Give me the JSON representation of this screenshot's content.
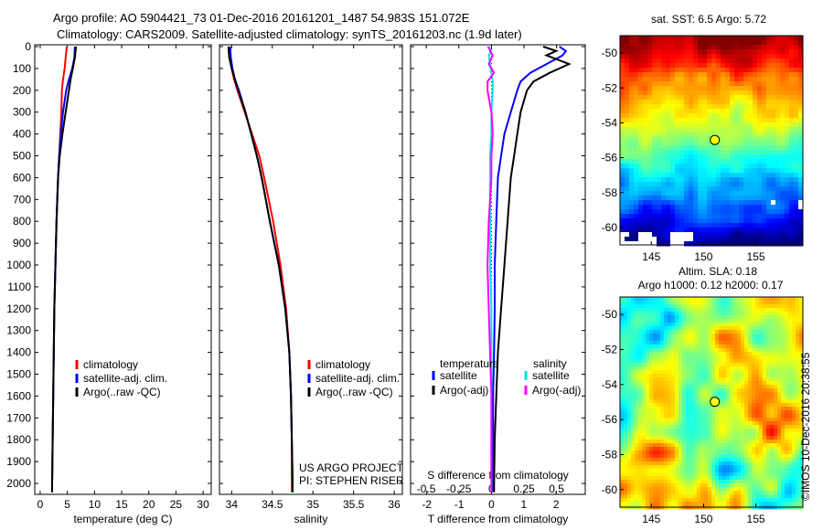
{
  "header": {
    "line1": "Argo profile: AO 5904421_73 01-Dec-2016 20161201_1487 54.983S 151.072E",
    "line2": "Climatology: CARS2009. Satellite-adjusted climatology: synTS_20161203.nc (1.9d later)"
  },
  "stamp": "©IMOS 10-Dec-2016 20:38:55",
  "colors": {
    "climatology": "#ff0000",
    "satellite": "#0000ff",
    "argo": "#000000",
    "salinity_satellite": "#00e5e5",
    "salinity_argo": "#ff00ff"
  },
  "chart_data": [
    {
      "type": "line",
      "panel": "temperature",
      "xlabel": "temperature (deg C)",
      "ylabel": "",
      "xlim": [
        -1,
        31.5
      ],
      "ylim": [
        2050,
        0
      ],
      "xticks": [
        "0",
        "5",
        "10",
        "15",
        "20",
        "25",
        "30"
      ],
      "yticks": [
        "0",
        "100",
        "200",
        "300",
        "400",
        "500",
        "600",
        "700",
        "800",
        "900",
        "1000",
        "1100",
        "1200",
        "1300",
        "1400",
        "1500",
        "1600",
        "1700",
        "1800",
        "1900",
        "2000"
      ],
      "depth": [
        0,
        50,
        100,
        150,
        200,
        300,
        400,
        500,
        600,
        800,
        1000,
        1200,
        1400,
        1600,
        1800,
        2000,
        2040
      ],
      "legend": [
        "climatology",
        "satellite-adj. clim.",
        "Argo(..raw -QC)"
      ],
      "series": [
        {
          "name": "climatology",
          "color": "#ff0000",
          "values": [
            4.9,
            4.7,
            4.5,
            4.2,
            4.0,
            3.9,
            3.7,
            3.5,
            3.3,
            3.0,
            2.8,
            2.6,
            2.5,
            2.4,
            2.3,
            2.2,
            2.2
          ]
        },
        {
          "name": "satellite-adj. clim.",
          "color": "#0000ff",
          "values": [
            6.4,
            6.3,
            5.9,
            5.3,
            4.8,
            4.2,
            3.8,
            3.5,
            3.3,
            3.0,
            2.8,
            2.6,
            2.5,
            2.4,
            2.3,
            2.2,
            2.2
          ]
        },
        {
          "name": "Argo(..raw -QC)",
          "color": "#000000",
          "values": [
            6.6,
            6.4,
            6.0,
            5.6,
            5.3,
            4.7,
            4.1,
            3.6,
            3.3,
            3.0,
            2.8,
            2.6,
            2.5,
            2.4,
            2.3,
            2.2,
            2.2
          ]
        }
      ],
      "legend_location": "lower-right"
    },
    {
      "type": "line",
      "panel": "salinity",
      "xlabel": "salinity",
      "xlim": [
        33.85,
        36.1
      ],
      "ylim": [
        2050,
        0
      ],
      "xticks": [
        "34",
        "34.5",
        "35",
        "35.5",
        "36"
      ],
      "depth": [
        0,
        50,
        100,
        150,
        200,
        300,
        400,
        500,
        600,
        800,
        1000,
        1200,
        1400,
        1600,
        1800,
        2000,
        2040
      ],
      "legend": [
        "climatology",
        "satellite-adj. clim.",
        "Argo(..raw -QC)"
      ],
      "series": [
        {
          "name": "climatology",
          "color": "#ff0000",
          "values": [
            33.98,
            33.99,
            34.0,
            34.03,
            34.07,
            34.16,
            34.25,
            34.34,
            34.4,
            34.51,
            34.6,
            34.67,
            34.71,
            34.73,
            34.74,
            34.74,
            34.74
          ]
        },
        {
          "name": "satellite-adj. clim.",
          "color": "#0000ff",
          "values": [
            33.98,
            33.99,
            34.01,
            34.04,
            34.09,
            34.17,
            34.24,
            34.31,
            34.37,
            34.47,
            34.58,
            34.66,
            34.71,
            34.73,
            34.74,
            34.75,
            34.75
          ]
        },
        {
          "name": "Argo(..raw -QC)",
          "color": "#000000",
          "values": [
            33.96,
            33.97,
            34.0,
            34.04,
            34.08,
            34.17,
            34.24,
            34.31,
            34.37,
            34.47,
            34.58,
            34.66,
            34.71,
            34.73,
            34.74,
            34.75,
            34.75
          ]
        }
      ],
      "legend_location": "lower-right",
      "annotations": [
        "US ARGO PROJECT",
        "PI: STEPHEN RISER"
      ]
    },
    {
      "type": "line",
      "panel": "difference",
      "xlabel": "T difference from climatology",
      "xlabel_top": "S difference from climatology",
      "xlim_T": [
        -2.5,
        2.9
      ],
      "xlim_S": [
        -0.62,
        0.72
      ],
      "ylim": [
        2050,
        0
      ],
      "xticks_T": [
        "-2",
        "-1",
        "0",
        "1",
        "2"
      ],
      "xticks_S": [
        "-0.5",
        "-0.25",
        "0",
        "0.25",
        "0.5"
      ],
      "legend_titles": [
        "temperature",
        "salinity"
      ],
      "legend": [
        "satellite",
        "Argo(-adj)",
        "satellite",
        "Argo(-adj)"
      ],
      "depth": [
        0,
        20,
        40,
        80,
        120,
        160,
        200,
        300,
        400,
        500,
        600,
        800,
        1000,
        1200,
        1400,
        1600,
        1800,
        2000,
        2040
      ],
      "series": [
        {
          "name": "satellite",
          "quantity": "temperature",
          "color": "#0000ff",
          "values": [
            2.1,
            2.3,
            2.2,
            1.7,
            1.2,
            0.9,
            0.8,
            0.6,
            0.4,
            0.3,
            0.2,
            0.15,
            0.1,
            0.1,
            0.08,
            0.05,
            0.05,
            0.03,
            0.03
          ]
        },
        {
          "name": "Argo(-adj)",
          "quantity": "temperature",
          "color": "#000000",
          "values": [
            1.6,
            2.0,
            1.7,
            2.4,
            1.8,
            1.3,
            1.1,
            0.9,
            0.8,
            0.7,
            0.6,
            0.5,
            0.4,
            0.3,
            0.2,
            0.15,
            0.1,
            0.08,
            0.08
          ]
        },
        {
          "name": "satellite",
          "quantity": "salinity",
          "color": "#00e5e5",
          "values": [
            -0.03,
            0.0,
            -0.02,
            -0.01,
            0.0,
            0.01,
            0.01,
            0.0,
            0.0,
            -0.01,
            -0.01,
            -0.01,
            -0.01,
            0.0,
            0.0,
            0.0,
            0.0,
            0.0,
            0.0
          ]
        },
        {
          "name": "Argo(-adj)",
          "quantity": "salinity",
          "color": "#ff00ff",
          "values": [
            -0.02,
            -0.01,
            0.01,
            -0.02,
            0.02,
            -0.03,
            -0.03,
            0.0,
            0.01,
            0.0,
            0.0,
            -0.02,
            -0.03,
            -0.02,
            -0.01,
            0.0,
            0.0,
            0.0,
            0.0
          ]
        }
      ]
    },
    {
      "type": "heatmap",
      "panel": "sst_map",
      "title": "sat. SST: 6.5 Argo: 5.72",
      "xlim": [
        142,
        159.5
      ],
      "ylim": [
        -61,
        -49
      ],
      "xticks": [
        "145",
        "150",
        "155"
      ],
      "yticks": [
        "-50",
        "-52",
        "-54",
        "-56",
        "-58",
        "-60"
      ],
      "marker": {
        "lon": 151.072,
        "lat": -54.983
      }
    },
    {
      "type": "heatmap",
      "panel": "sla_map",
      "title": "Altim. SLA: 0.18",
      "subtitle": "Argo h1000: 0.12 h2000: 0.17",
      "xlim": [
        142,
        159.5
      ],
      "ylim": [
        -61,
        -49
      ],
      "xticks": [
        "145",
        "150",
        "155"
      ],
      "yticks": [
        "-50",
        "-52",
        "-54",
        "-56",
        "-58",
        "-60"
      ],
      "marker": {
        "lon": 151.072,
        "lat": -54.983
      }
    }
  ]
}
